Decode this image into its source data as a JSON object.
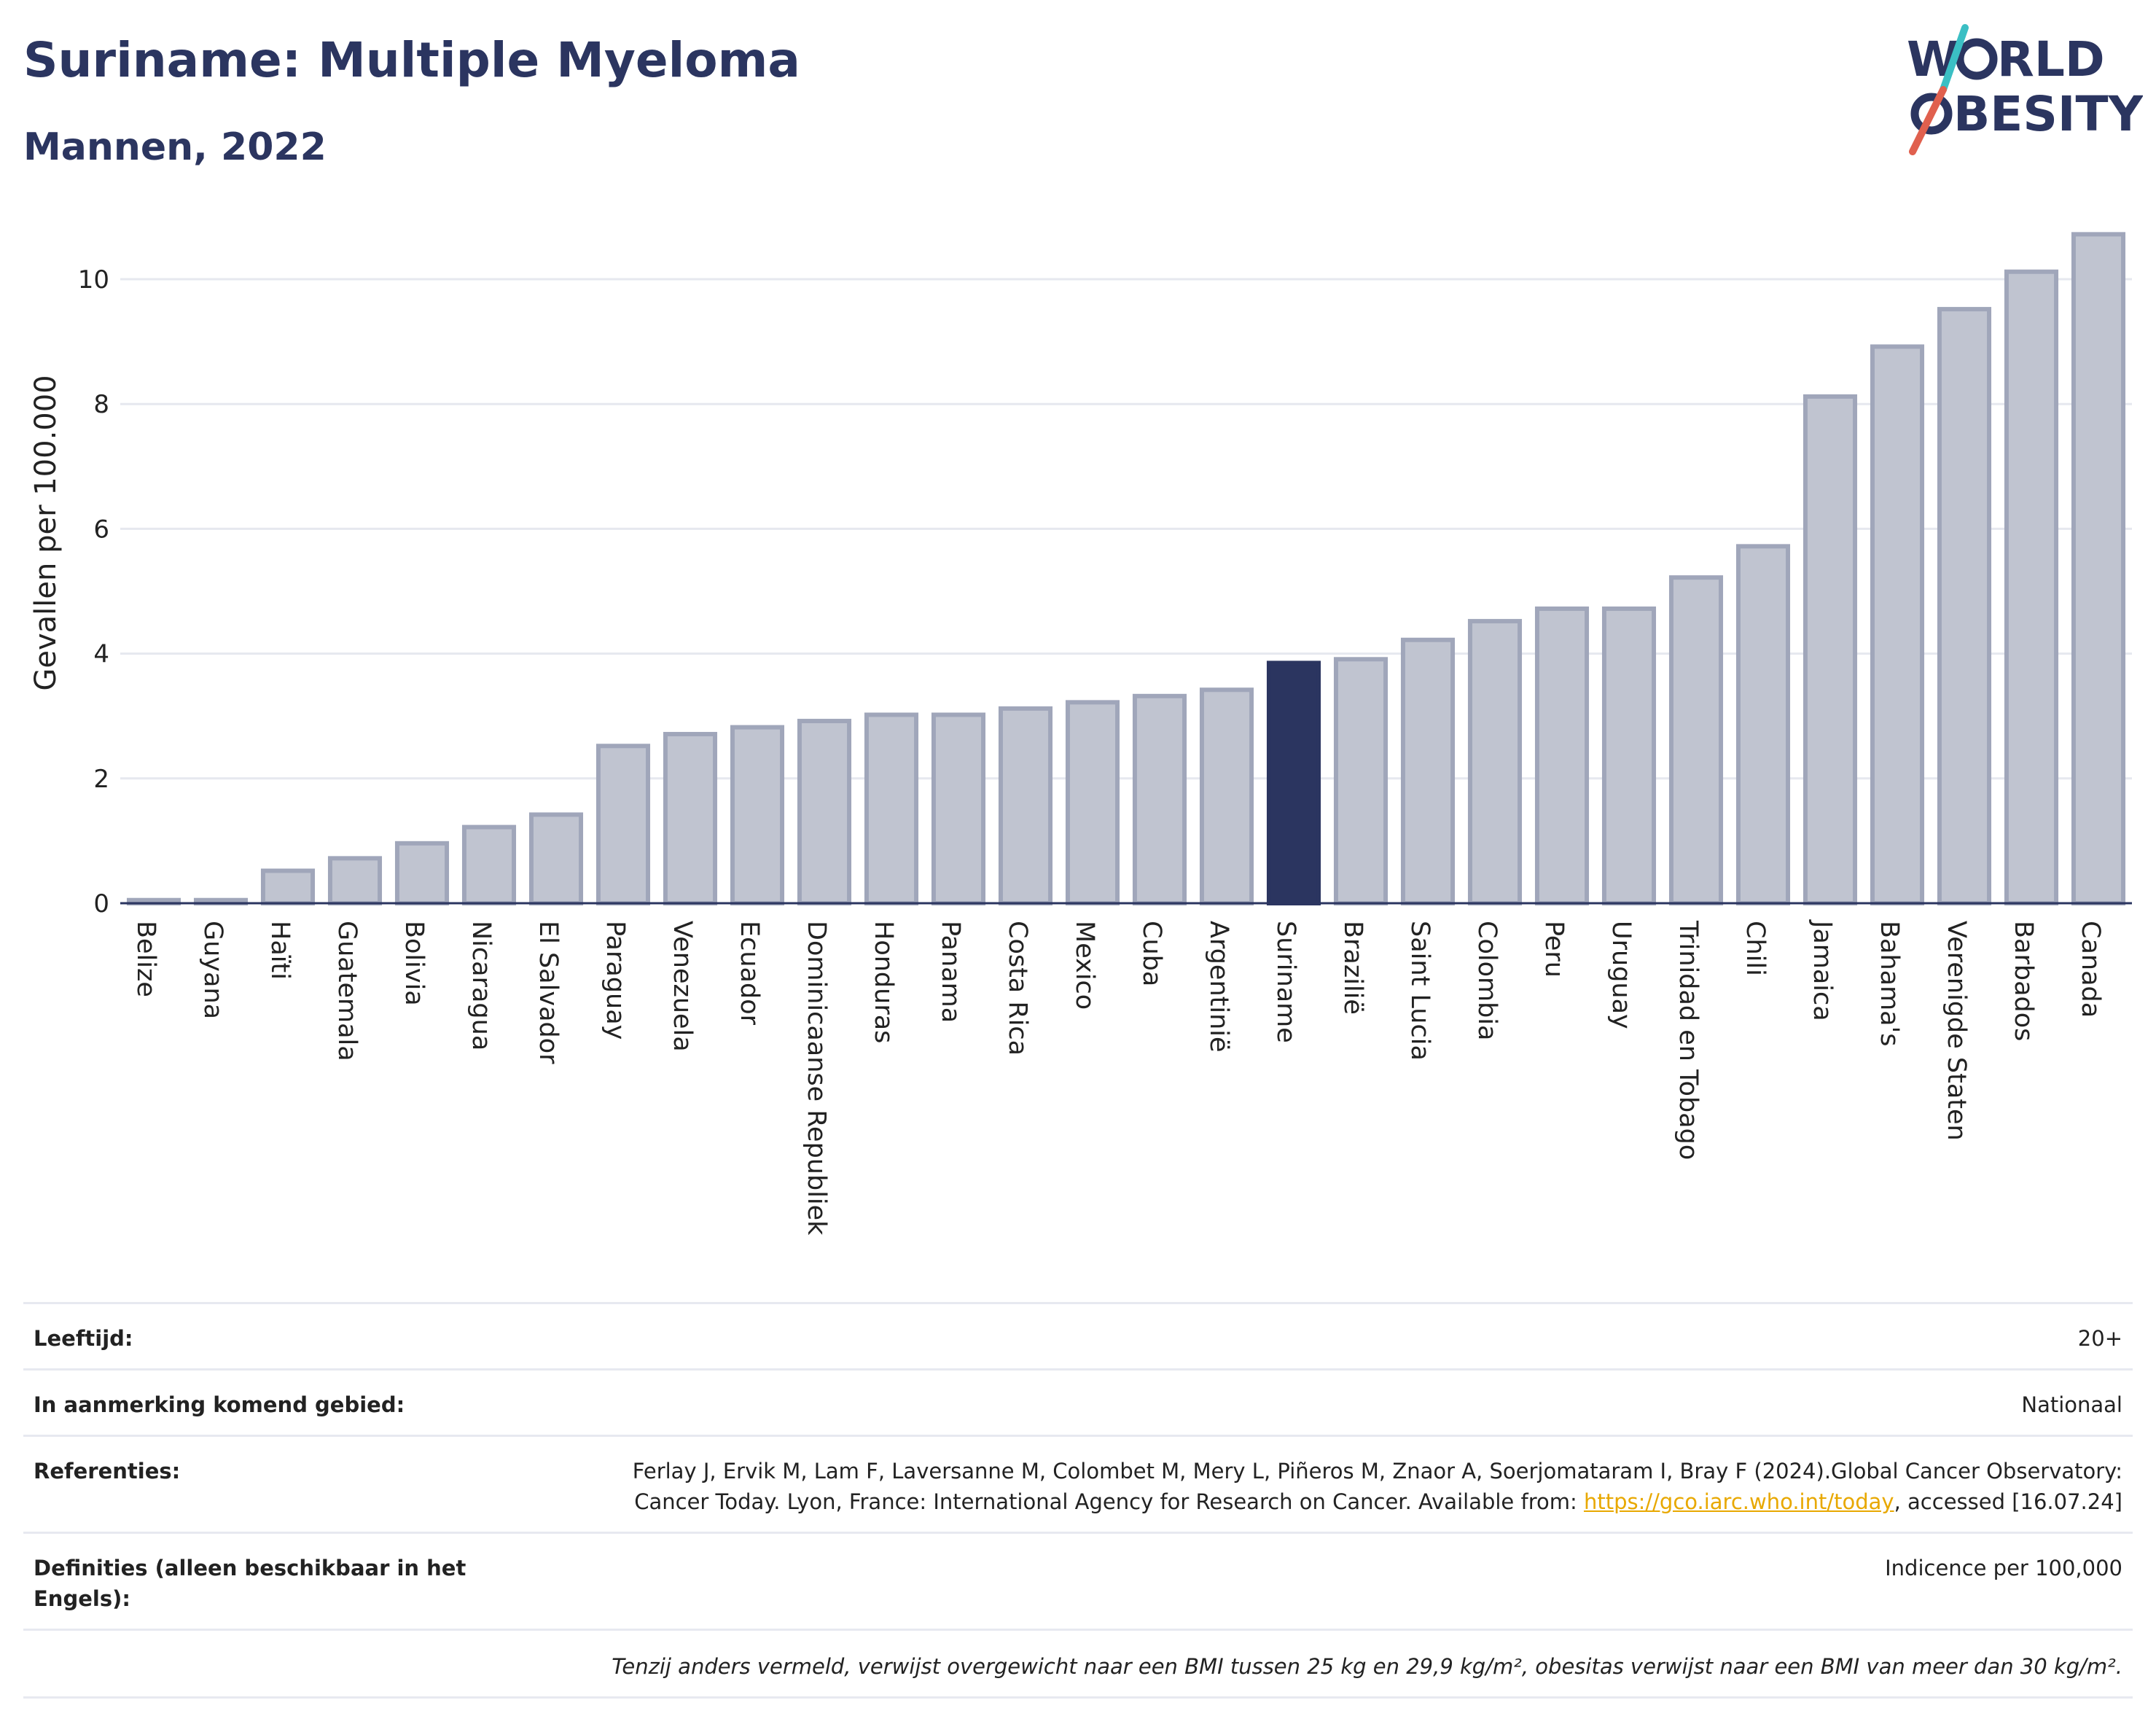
{
  "header": {
    "title": "Suriname: Multiple Myeloma",
    "subtitle": "Mannen, 2022"
  },
  "logo": {
    "line1": "W",
    "line1b": "RLD",
    "line2": "BESITY",
    "accent_teal": "#3bbfc4",
    "accent_red": "#e0604e",
    "text_color": "#2b3560"
  },
  "chart_data": {
    "type": "bar",
    "ylabel": "Gevallen per 100.000",
    "xlabel": "",
    "ylim": [
      0,
      11
    ],
    "yticks": [
      0,
      2,
      4,
      6,
      8,
      10
    ],
    "grid": true,
    "highlight": "Suriname",
    "colors": {
      "bar": "#c0c4d0",
      "bar_border": "#a0a6ba",
      "highlight": "#2b3560"
    },
    "categories": [
      "Belize",
      "Guyana",
      "Haïti",
      "Guatemala",
      "Bolivia",
      "Nicaragua",
      "El Salvador",
      "Paraguay",
      "Venezuela",
      "Ecuador",
      "Dominicaanse Republiek",
      "Honduras",
      "Panama",
      "Costa Rica",
      "Mexico",
      "Cuba",
      "Argentinië",
      "Suriname",
      "Brazilië",
      "Saint Lucia",
      "Colombia",
      "Peru",
      "Uruguay",
      "Trinidad en Tobago",
      "Chili",
      "Jamaica",
      "Bahama's",
      "Verenigde Staten",
      "Barbados",
      "Canada"
    ],
    "values": [
      0.05,
      0.05,
      0.52,
      0.72,
      0.96,
      1.22,
      1.42,
      2.52,
      2.71,
      2.82,
      2.92,
      3.02,
      3.02,
      3.12,
      3.22,
      3.32,
      3.42,
      3.85,
      3.91,
      4.22,
      4.52,
      4.72,
      4.72,
      5.22,
      5.72,
      8.12,
      8.92,
      9.52,
      10.12,
      10.72
    ]
  },
  "meta": {
    "age_label": "Leeftijd:",
    "age_value": "20+",
    "area_label": "In aanmerking komend gebied:",
    "area_value": "Nationaal",
    "ref_label": "Referenties:",
    "ref_text": "Ferlay J, Ervik M, Lam F, Laversanne M, Colombet M, Mery L, Piñeros M, Znaor A, Soerjomataram I, Bray F (2024).Global Cancer Observatory: Cancer Today. Lyon, France: International Agency for Research on Cancer. Available from: ",
    "ref_link": "https://gco.iarc.who.int/today",
    "ref_tail": ", accessed [16.07.24]",
    "def_label": "Definities (alleen beschikbaar in het Engels):",
    "def_value": "Indicence per 100,000",
    "note": "Tenzij anders vermeld, verwijst overgewicht naar een BMI tussen 25 kg en 29,9 kg/m², obesitas verwijst naar een BMI van meer dan 30 kg/m²."
  }
}
